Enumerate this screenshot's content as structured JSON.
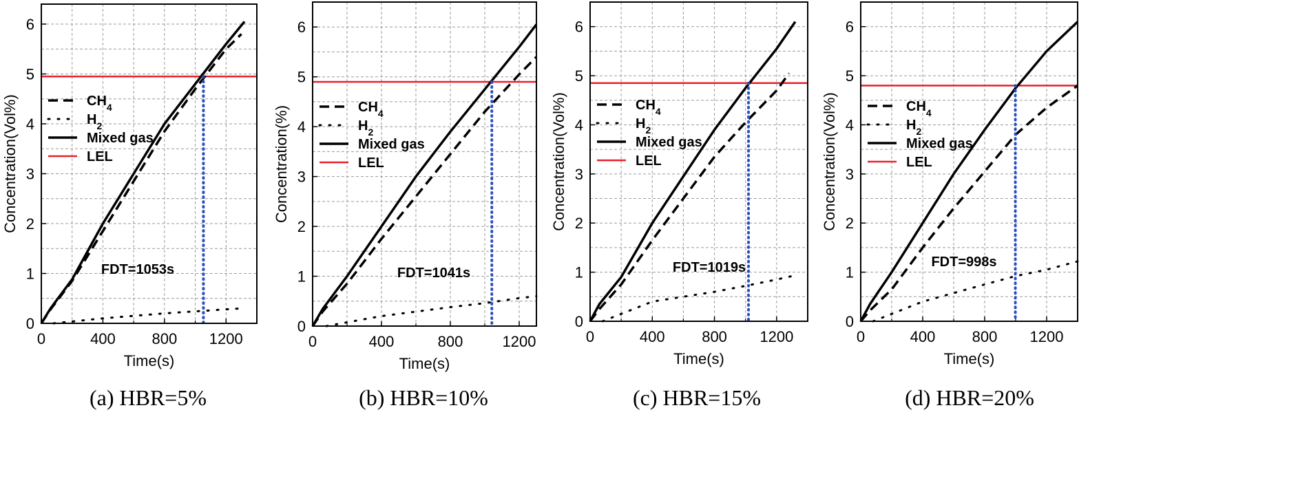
{
  "figure": {
    "subfigure_count": 4
  },
  "chart_data": [
    {
      "type": "line",
      "caption": "(a) HBR=5%",
      "xlabel": "Time(s)",
      "ylabel": "Concentration(Vol%)",
      "xlim": [
        0,
        1400
      ],
      "ylim": [
        0,
        6.4
      ],
      "xticks": [
        "0",
        "400",
        "800",
        "1200"
      ],
      "yticks": [
        "0",
        "1",
        "2",
        "3",
        "4",
        "5",
        "6"
      ],
      "grid": true,
      "legend_position": "middle-left",
      "series": [
        {
          "name": "CH4",
          "style": "dashed",
          "x": [
            0,
            60,
            200,
            400,
            600,
            800,
            1000,
            1200,
            1300
          ],
          "y": [
            0,
            0.28,
            0.85,
            1.85,
            2.85,
            3.85,
            4.7,
            5.5,
            5.8
          ]
        },
        {
          "name": "H2",
          "style": "dotted",
          "x": [
            80,
            400,
            800,
            1200,
            1300
          ],
          "y": [
            0,
            0.1,
            0.2,
            0.28,
            0.3
          ]
        },
        {
          "name": "Mixed gas",
          "style": "solid",
          "x": [
            0,
            60,
            200,
            400,
            600,
            800,
            1000,
            1200,
            1320
          ],
          "y": [
            0,
            0.3,
            0.88,
            2.0,
            3.0,
            4.0,
            4.8,
            5.6,
            6.05
          ]
        },
        {
          "name": "LEL",
          "style": "solid-red",
          "x": [
            0,
            1400
          ],
          "y": [
            4.95,
            4.95
          ]
        }
      ],
      "fdt": {
        "label": "FDT=1053s",
        "time": 1053
      }
    },
    {
      "type": "line",
      "caption": "(b) HBR=10%",
      "xlabel": "Time(s)",
      "ylabel": "Concentration(%)",
      "xlim": [
        0,
        1300
      ],
      "ylim": [
        0,
        6.5
      ],
      "xticks": [
        "0",
        "400",
        "800",
        "1200"
      ],
      "yticks": [
        "0",
        "1",
        "2",
        "3",
        "4",
        "5",
        "6"
      ],
      "grid": true,
      "legend_position": "middle-left",
      "series": [
        {
          "name": "CH4",
          "style": "dashed",
          "x": [
            0,
            60,
            200,
            400,
            600,
            800,
            1000,
            1200,
            1300
          ],
          "y": [
            0,
            0.3,
            0.85,
            1.75,
            2.6,
            3.45,
            4.3,
            5.05,
            5.4
          ]
        },
        {
          "name": "H2",
          "style": "dotted",
          "x": [
            80,
            400,
            800,
            1000,
            1200,
            1300
          ],
          "y": [
            0,
            0.2,
            0.38,
            0.46,
            0.56,
            0.6
          ]
        },
        {
          "name": "Mixed gas",
          "style": "solid",
          "x": [
            0,
            60,
            200,
            400,
            600,
            800,
            1000,
            1200,
            1300
          ],
          "y": [
            0,
            0.35,
            1.0,
            2.0,
            3.0,
            3.9,
            4.75,
            5.6,
            6.05
          ]
        },
        {
          "name": "LEL",
          "style": "solid-red",
          "x": [
            0,
            1300
          ],
          "y": [
            4.9,
            4.9
          ]
        }
      ],
      "fdt": {
        "label": "FDT=1041s",
        "time": 1041
      }
    },
    {
      "type": "line",
      "caption": "(c) HBR=15%",
      "xlabel": "Time(s)",
      "ylabel": "Concentration(Vol%)",
      "xlim": [
        0,
        1400
      ],
      "ylim": [
        0,
        6.5
      ],
      "xticks": [
        "0",
        "400",
        "800",
        "1200"
      ],
      "yticks": [
        "0",
        "1",
        "2",
        "3",
        "4",
        "5",
        "6"
      ],
      "grid": true,
      "legend_position": "middle-left",
      "series": [
        {
          "name": "CH4",
          "style": "dashed",
          "x": [
            0,
            60,
            200,
            400,
            600,
            800,
            1000,
            1200,
            1280
          ],
          "y": [
            0,
            0.25,
            0.75,
            1.65,
            2.5,
            3.35,
            4.05,
            4.7,
            5.05
          ]
        },
        {
          "name": "H2",
          "style": "dotted",
          "x": [
            80,
            400,
            800,
            1000,
            1200,
            1300
          ],
          "y": [
            0,
            0.4,
            0.6,
            0.72,
            0.85,
            0.92
          ]
        },
        {
          "name": "Mixed gas",
          "style": "solid",
          "x": [
            0,
            60,
            200,
            400,
            600,
            800,
            1000,
            1200,
            1320
          ],
          "y": [
            0,
            0.35,
            0.9,
            2.0,
            2.95,
            3.9,
            4.75,
            5.55,
            6.1
          ]
        },
        {
          "name": "LEL",
          "style": "solid-red",
          "x": [
            0,
            1400
          ],
          "y": [
            4.85,
            4.85
          ]
        }
      ],
      "fdt": {
        "label": "FDT=1019s",
        "time": 1019
      }
    },
    {
      "type": "line",
      "caption": "(d) HBR=20%",
      "xlabel": "Time(s)",
      "ylabel": "Concentration(Vol%)",
      "xlim": [
        0,
        1400
      ],
      "ylim": [
        0,
        6.5
      ],
      "xticks": [
        "0",
        "400",
        "800",
        "1200"
      ],
      "yticks": [
        "0",
        "1",
        "2",
        "3",
        "4",
        "5",
        "6"
      ],
      "grid": true,
      "legend_position": "middle-left",
      "series": [
        {
          "name": "CH4",
          "style": "dashed",
          "x": [
            0,
            60,
            200,
            400,
            600,
            800,
            1000,
            1200,
            1400
          ],
          "y": [
            0,
            0.22,
            0.65,
            1.5,
            2.3,
            3.05,
            3.8,
            4.35,
            4.8
          ]
        },
        {
          "name": "H2",
          "style": "dotted",
          "x": [
            80,
            400,
            800,
            1000,
            1200,
            1400
          ],
          "y": [
            0,
            0.4,
            0.75,
            0.92,
            1.05,
            1.22
          ]
        },
        {
          "name": "Mixed gas",
          "style": "solid",
          "x": [
            0,
            60,
            200,
            400,
            600,
            800,
            1000,
            1200,
            1400
          ],
          "y": [
            0,
            0.35,
            1.0,
            2.0,
            3.0,
            3.9,
            4.75,
            5.5,
            6.1
          ]
        },
        {
          "name": "LEL",
          "style": "solid-red",
          "x": [
            0,
            1400
          ],
          "y": [
            4.8,
            4.8
          ]
        }
      ],
      "fdt": {
        "label": "FDT=998s",
        "time": 998
      }
    }
  ]
}
